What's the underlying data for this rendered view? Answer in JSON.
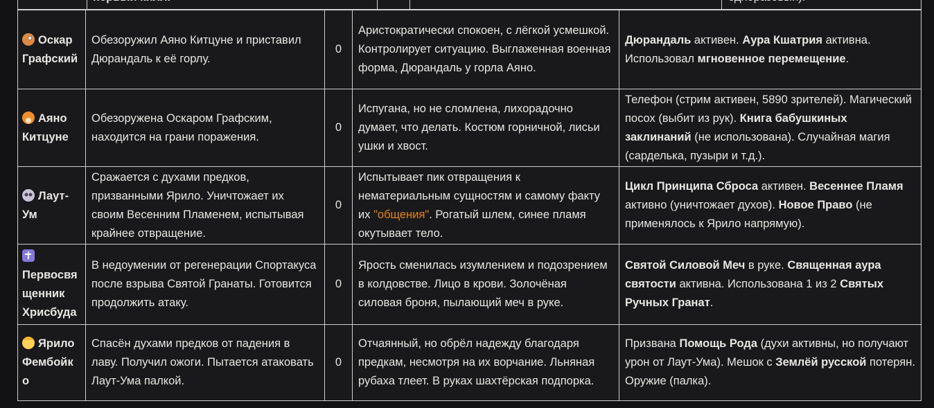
{
  "page": {
    "background": "#121214",
    "cell_background": "#19191b",
    "border_color": "#cfcfcf",
    "text_color": "#e8e6e3",
    "accent_orange": "#e6861c"
  },
  "top_partial_row": {
    "left_text": "первый килл.",
    "right_text": "одноразовый)."
  },
  "table": {
    "rows": [
      {
        "emoji": "🧐",
        "emoji_icon": "monocle-face-emoji",
        "name": "Оскар Графский",
        "action": "Обезоружил Аяно Китцуне и приставил Дюрандаль к её горлу.",
        "count": "0",
        "state": [
          {
            "t": "Аристократически спокоен, с лёгкой усмешкой. Контролирует ситуацию. Выглаженная военная форма, Дюрандаль у горла Аяно."
          }
        ],
        "items": [
          {
            "t": "Дюрандаль",
            "b": true
          },
          {
            "t": " активен. "
          },
          {
            "t": "Аура Кшатрия",
            "b": true
          },
          {
            "t": " активна. Использовал "
          },
          {
            "t": "мгновенное перемещение",
            "b": true
          },
          {
            "t": "."
          }
        ]
      },
      {
        "emoji": "🦊",
        "emoji_icon": "fox-face-emoji",
        "name": "Аяно Китцуне",
        "action": "Обезоружена Оскаром Графским, находится на грани поражения.",
        "count": "0",
        "state": [
          {
            "t": "Испугана, но не сломлена, лихорадочно думает, что делать. Костюм горничной, лисьи ушки и хвост."
          }
        ],
        "items": [
          {
            "t": "Телефон (стрим активен, 5890 зрителей). Магический посох (выбит из рук). "
          },
          {
            "t": "Книга бабушкиных заклинаний",
            "b": true
          },
          {
            "t": " (не использована). Случайная магия (сарделька, пузыри и т.д.)."
          }
        ]
      },
      {
        "emoji": "💀",
        "emoji_icon": "skull-emoji",
        "name": "Лаут-Ум",
        "action": "Сражается с духами предков, призванными Ярило. Уничтожает их своим Весенним Пламенем, испытывая крайнее отвращение.",
        "count": "0",
        "state": [
          {
            "t": "Испытывает пик отвращения к нематериальным сущностям и самому факту их "
          },
          {
            "t": "\"общения\"",
            "c": "orange"
          },
          {
            "t": ". Рогатый шлем, синее пламя окутывает тело."
          }
        ],
        "items": [
          {
            "t": "Цикл Принципа Сброса",
            "b": true
          },
          {
            "t": " активен. "
          },
          {
            "t": "Весеннее Пламя",
            "b": true
          },
          {
            "t": " активно (уничтожает духов). "
          },
          {
            "t": "Новое Право",
            "b": true
          },
          {
            "t": " (не применялось к Ярило напрямую)."
          }
        ]
      },
      {
        "emoji": "✝️",
        "emoji_icon": "latin-cross-emoji",
        "name": "Первосвященник Хрисбуда",
        "action": "В недоумении от регенерации Спортакуса после взрыва Святой Гранаты. Готовится продолжить атаку.",
        "count": "0",
        "state": [
          {
            "t": "Ярость сменилась изумлением и подозрением в колдовстве. Лицо в крови. Золочёная силовая броня, пылающий меч в руке."
          }
        ],
        "items": [
          {
            "t": "Святой Силовой Меч",
            "b": true
          },
          {
            "t": " в руке. "
          },
          {
            "t": "Священная аура святости",
            "b": true
          },
          {
            "t": " активна. Использована 1 из 2 "
          },
          {
            "t": "Святых Ручных Гранат",
            "b": true
          },
          {
            "t": "."
          }
        ]
      },
      {
        "emoji": "👱",
        "emoji_icon": "blond-person-emoji",
        "name": "Ярило Фембойко",
        "action": "Спасён духами предков от падения в лаву. Получил ожоги. Пытается атаковать Лаут-Ума палкой.",
        "count": "0",
        "state": [
          {
            "t": "Отчаянный, но обрёл надежду благодаря предкам, несмотря на их ворчание. Льняная рубаха тлеет. В руках шахтёрская подпорка."
          }
        ],
        "items": [
          {
            "t": "Призвана "
          },
          {
            "t": "Помощь Рода",
            "b": true
          },
          {
            "t": " (духи активны, но получают урон от Лаут-Ума). Мешок с "
          },
          {
            "t": "Землёй русской",
            "b": true
          },
          {
            "t": " потерян. Оружие (палка)."
          }
        ]
      }
    ]
  }
}
